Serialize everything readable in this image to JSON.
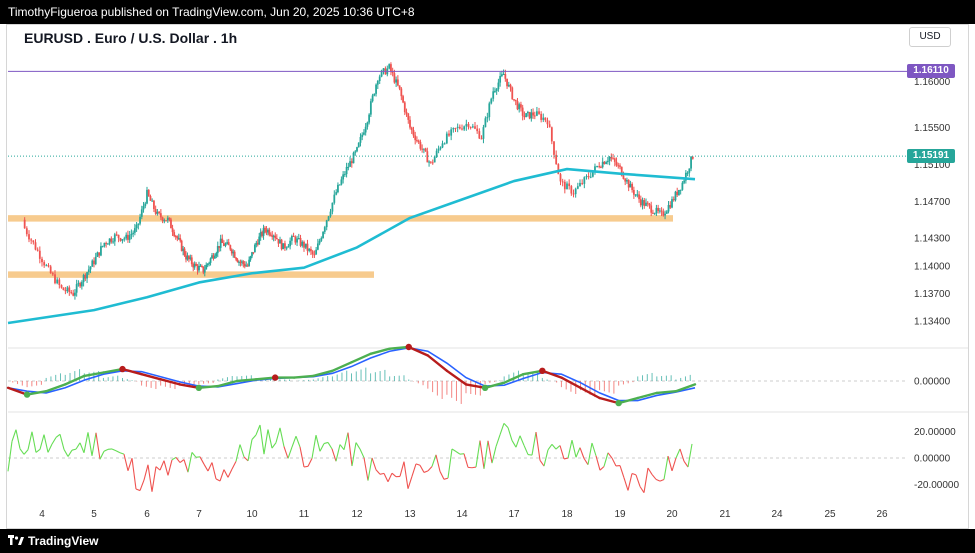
{
  "header": {
    "publisher": "TimothyFigueroa published on TradingView.com, Jun 20, 2025 10:36 UTC+8"
  },
  "footer": {
    "brand": "TradingView"
  },
  "currency_button": "USD",
  "colors": {
    "up": "#26a69a",
    "down": "#ef5350",
    "ma": "#1fbcd2",
    "resistance": "#7e57c2",
    "support_zone": "#f6c27a",
    "current": "#26a69a",
    "osc_blue": "#2962ff",
    "osc_green": "#4caf50",
    "osc_red": "#b71c1c",
    "rsi_up": "#66dd55",
    "rsi_down": "#ef5350"
  },
  "chart_data": {
    "type": "candlestick",
    "title": "EURUSD . Euro / U.S. Dollar . 1h",
    "x_ticks": [
      "4",
      "5",
      "6",
      "7",
      "10",
      "11",
      "12",
      "13",
      "14",
      "17",
      "18",
      "19",
      "20",
      "21",
      "24",
      "25",
      "26"
    ],
    "y_ticks": [
      "1.16000",
      "1.15500",
      "1.15100",
      "1.14700",
      "1.14300",
      "1.14000",
      "1.13700",
      "1.13400"
    ],
    "y_range": [
      1.1325,
      1.1645
    ],
    "resistance_level": "1.16110",
    "current_price": "1.15191",
    "support_zones": [
      {
        "price_top": 1.1455,
        "price_bottom": 1.1448,
        "start": "4",
        "end": "20"
      },
      {
        "price_top": 1.1394,
        "price_bottom": 1.1387,
        "start": "4",
        "end": "11"
      }
    ],
    "price_path": [
      [
        "4",
        1.1445
      ],
      [
        "4",
        1.142
      ],
      [
        "4",
        1.1395
      ],
      [
        "4",
        1.1375
      ],
      [
        "5",
        1.137
      ],
      [
        "5",
        1.1388
      ],
      [
        "5",
        1.1405
      ],
      [
        "5",
        1.1425
      ],
      [
        "5",
        1.1432
      ],
      [
        "6",
        1.143
      ],
      [
        "6",
        1.144
      ],
      [
        "6",
        1.1478
      ],
      [
        "6",
        1.1455
      ],
      [
        "6",
        1.145
      ],
      [
        "7",
        1.143
      ],
      [
        "7",
        1.141
      ],
      [
        "7",
        1.14
      ],
      [
        "7",
        1.1395
      ],
      [
        "7",
        1.141
      ],
      [
        "7",
        1.1425
      ],
      [
        "10",
        1.142
      ],
      [
        "10",
        1.1405
      ],
      [
        "10",
        1.14
      ],
      [
        "10",
        1.1425
      ],
      [
        "10",
        1.144
      ],
      [
        "10",
        1.1435
      ],
      [
        "11",
        1.142
      ],
      [
        "11",
        1.143
      ],
      [
        "11",
        1.1422
      ],
      [
        "11",
        1.141
      ],
      [
        "11",
        1.1445
      ],
      [
        "12",
        1.148
      ],
      [
        "12",
        1.1505
      ],
      [
        "12",
        1.1525
      ],
      [
        "12",
        1.156
      ],
      [
        "12",
        1.1605
      ],
      [
        "13",
        1.1615
      ],
      [
        "13",
        1.159
      ],
      [
        "13",
        1.155
      ],
      [
        "13",
        1.153
      ],
      [
        "13",
        1.151
      ],
      [
        "14",
        1.1535
      ],
      [
        "14",
        1.1548
      ],
      [
        "14",
        1.1555
      ],
      [
        "14",
        1.154
      ],
      [
        "17",
        1.159
      ],
      [
        "17",
        1.1608
      ],
      [
        "17",
        1.158
      ],
      [
        "17",
        1.1562
      ],
      [
        "17",
        1.1565
      ],
      [
        "18",
        1.1558
      ],
      [
        "18",
        1.149
      ],
      [
        "18",
        1.148
      ],
      [
        "18",
        1.1495
      ],
      [
        "19",
        1.151
      ],
      [
        "19",
        1.1518
      ],
      [
        "19",
        1.1505
      ],
      [
        "19",
        1.1485
      ],
      [
        "19",
        1.147
      ],
      [
        "20",
        1.1462
      ],
      [
        "20",
        1.1455
      ],
      [
        "20",
        1.147
      ],
      [
        "20",
        1.149
      ],
      [
        "20",
        1.1519
      ]
    ],
    "moving_average": [
      [
        "4",
        1.1338
      ],
      [
        "5",
        1.1352
      ],
      [
        "6",
        1.1366
      ],
      [
        "7",
        1.1382
      ],
      [
        "10",
        1.1392
      ],
      [
        "11",
        1.1398
      ],
      [
        "12",
        1.142
      ],
      [
        "13",
        1.1452
      ],
      [
        "14",
        1.1472
      ],
      [
        "17",
        1.1492
      ],
      [
        "18",
        1.1505
      ],
      [
        "19",
        1.15
      ],
      [
        "20",
        1.1494
      ]
    ],
    "oscillator_1": {
      "y_ticks": [
        "0.00000"
      ],
      "values": [
        -0.0008,
        -0.0016,
        -0.0012,
        -0.0004,
        0.0006,
        0.001,
        0.0014,
        0.0008,
        0.0002,
        -0.0004,
        -0.0008,
        -0.0006,
        0.0,
        0.0002,
        0.0004,
        0.0004,
        0.0006,
        0.0012,
        0.0022,
        0.0032,
        0.0038,
        0.004,
        0.003,
        0.0012,
        -0.0004,
        -0.0008,
        -0.0002,
        0.0008,
        0.0012,
        0.0004,
        -0.0008,
        -0.002,
        -0.0026,
        -0.002,
        -0.0014,
        -0.0012,
        -0.0004
      ]
    },
    "oscillator_2": {
      "y_ticks": [
        "20.00000",
        "0.00000",
        "-20.00000"
      ],
      "y_range": [
        -30,
        30
      ]
    }
  }
}
